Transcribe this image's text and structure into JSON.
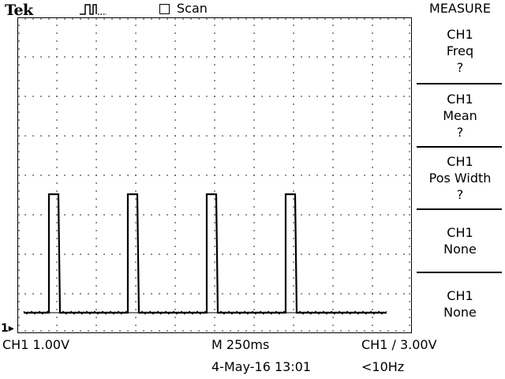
{
  "header": {
    "brand": "Tek",
    "acquisition_icon": "run-pulse-icon",
    "mode_checkbox": {
      "label": "Scan",
      "checked": false
    }
  },
  "menu": {
    "title": "MEASURE",
    "items": [
      {
        "source": "CH1",
        "type": "Freq",
        "value": "?"
      },
      {
        "source": "CH1",
        "type": "Mean",
        "value": "?"
      },
      {
        "source": "CH1",
        "type": "Pos Width",
        "value": "?"
      },
      {
        "source": "CH1",
        "type": "None",
        "value": ""
      },
      {
        "source": "CH1",
        "type": "None",
        "value": ""
      }
    ]
  },
  "status": {
    "ch1_scale": "CH1  1.00V",
    "timebase": "M 250ms",
    "trigger": "CH1 ∕ 3.00V",
    "timestamp": "4-May-16 13:01",
    "frequency": "<10Hz",
    "ground_marker": "1▸"
  },
  "waveform": {
    "channel": "CH1",
    "volts_per_div": 1.0,
    "seconds_per_div": 0.25,
    "baseline_volts": 0.4,
    "pulse_high_volts": 3.4,
    "pulse_starts_s": [
      0.2,
      0.7,
      1.2,
      1.7
    ],
    "pulse_width_s": 0.06,
    "trace_span_s": [
      0.04,
      2.34
    ]
  }
}
